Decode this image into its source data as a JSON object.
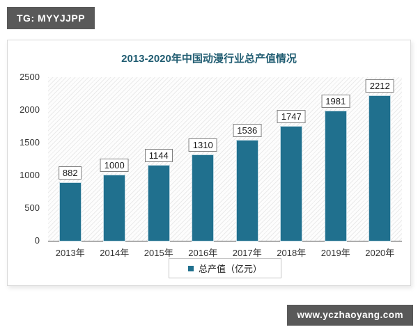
{
  "badges": {
    "top": "TG: MYYJJPP",
    "bottom": "www.yczhaoyang.com"
  },
  "colors": {
    "bar": "#20708e",
    "title": "#215d72",
    "badge_background": "#595959",
    "axis_line": "#404040"
  },
  "chart_data": {
    "type": "bar",
    "title": "2013-2020年中国动漫行业总产值情况",
    "categories": [
      "2013年",
      "2014年",
      "2015年",
      "2016年",
      "2017年",
      "2018年",
      "2019年",
      "2020年"
    ],
    "values": [
      882,
      1000,
      1144,
      1310,
      1536,
      1747,
      1981,
      2212
    ],
    "series_name": "总产值（亿元）",
    "legend_entries": [
      "总产值（亿元）"
    ],
    "legend_position": "bottom",
    "xlabel": "",
    "ylabel": "",
    "ylim": [
      0,
      2500
    ],
    "yticks": [
      0,
      500,
      1000,
      1500,
      2000,
      2500
    ],
    "grid": false,
    "plot_background": "diagonal-hatch",
    "data_labels": "boxed, above each bar"
  }
}
